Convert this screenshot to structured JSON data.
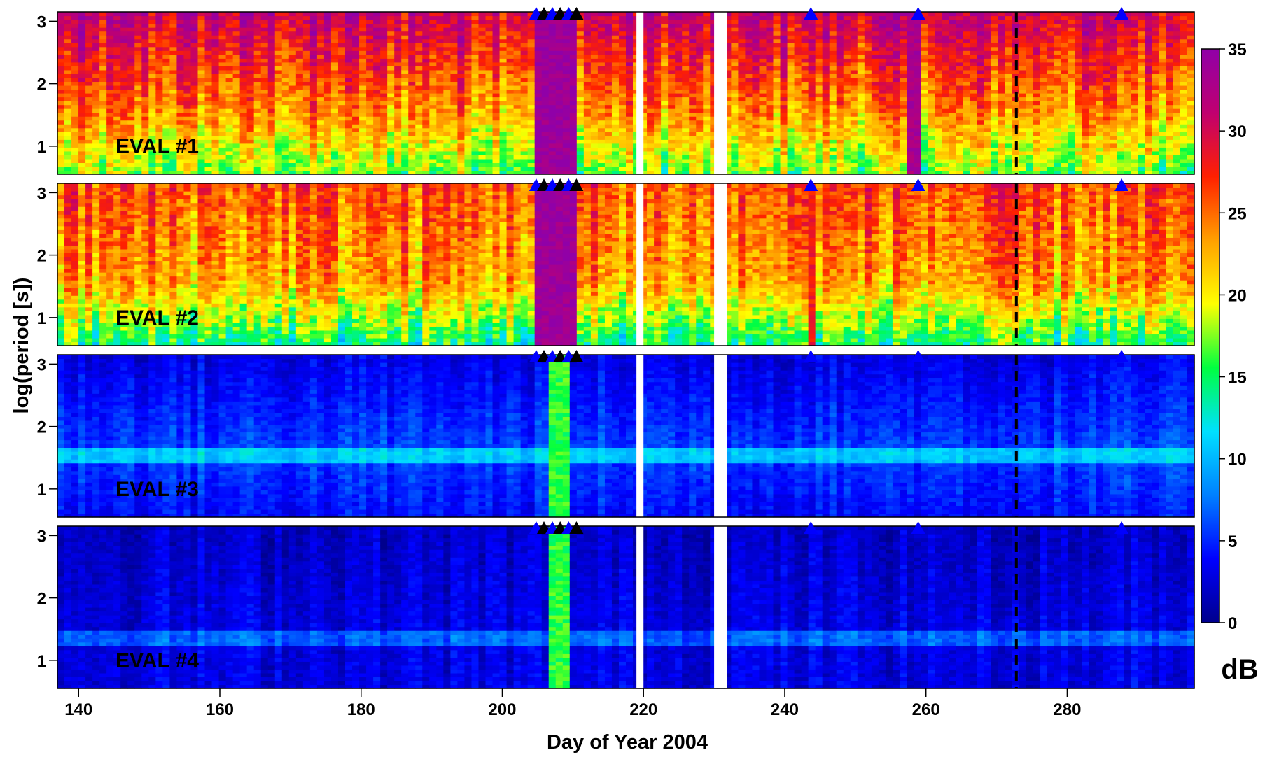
{
  "chart_data": {
    "type": "heatmap",
    "xlabel": "Day of Year 2004",
    "ylabel": "log(period [s])",
    "x_range": [
      137,
      298
    ],
    "y_range": [
      0.55,
      3.15
    ],
    "x_ticks": [
      140,
      160,
      180,
      200,
      220,
      240,
      260,
      280
    ],
    "y_ticks": [
      1,
      2,
      3
    ],
    "colorbar": {
      "label": "dB",
      "range": [
        0,
        35
      ],
      "ticks": [
        0,
        5,
        10,
        15,
        20,
        25,
        30,
        35
      ],
      "colormap": [
        "#00008c",
        "#0000ff",
        "#0080ff",
        "#00e0ff",
        "#00ff40",
        "#ffff00",
        "#ffa000",
        "#ff2000",
        "#c00070",
        "#9000a8"
      ]
    },
    "panels": [
      {
        "label": "EVAL #1",
        "base_db": 24,
        "top_db": 31,
        "low_db": 17,
        "noise_db": 5
      },
      {
        "label": "EVAL #2",
        "base_db": 23,
        "top_db": 26,
        "low_db": 14,
        "noise_db": 5
      },
      {
        "label": "EVAL #3",
        "base_db": 6,
        "top_db": 3,
        "low_db": 4,
        "noise_db": 2
      },
      {
        "label": "EVAL #4",
        "base_db": 3,
        "top_db": 2,
        "low_db": 3,
        "noise_db": 2
      }
    ],
    "data_gaps_days": [
      [
        219,
        220
      ],
      [
        230,
        231.8
      ]
    ],
    "dashed_line_day": 272.8,
    "event_markers": [
      {
        "day": 204.8,
        "color": "#0000ff"
      },
      {
        "day": 205.9,
        "color": "#000000"
      },
      {
        "day": 207.1,
        "color": "#0000ff"
      },
      {
        "day": 208.2,
        "color": "#000000"
      },
      {
        "day": 209.4,
        "color": "#0000ff"
      },
      {
        "day": 210.5,
        "color": "#000000"
      },
      {
        "day": 243.7,
        "color": "#0000ff"
      },
      {
        "day": 258.9,
        "color": "#0000ff"
      },
      {
        "day": 287.7,
        "color": "#0000ff"
      }
    ],
    "event_bands": [
      {
        "start": 204.8,
        "end": 210.5,
        "db": 34,
        "panels": [
          0,
          1
        ]
      },
      {
        "start": 206.5,
        "end": 209.5,
        "db": 16,
        "panels": [
          2,
          3
        ]
      },
      {
        "start": 257.5,
        "end": 259.0,
        "db": 33,
        "panels": [
          0
        ]
      },
      {
        "start": 243.2,
        "end": 244.2,
        "db": 28,
        "panels": [
          1
        ]
      }
    ]
  }
}
